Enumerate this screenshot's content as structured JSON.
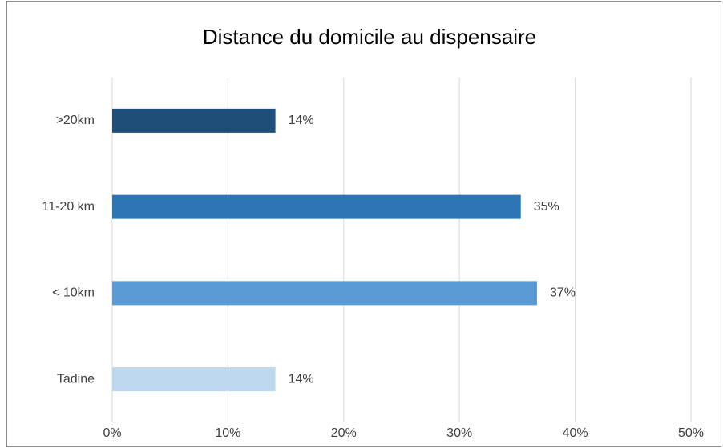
{
  "chart_data": {
    "type": "hbar",
    "title": "Distance du domicile au dispensaire",
    "categories": [
      ">20km",
      "11-20 km",
      "< 10km",
      "Tadine"
    ],
    "values": [
      14.1,
      35.3,
      36.7,
      14.1
    ],
    "value_labels": [
      "14%",
      "35%",
      "37%",
      "14%"
    ],
    "colors": [
      "#1f4e79",
      "#2e75b6",
      "#5b9bd5",
      "#bdd7ee"
    ],
    "xlim": [
      0,
      50
    ],
    "xticks": [
      {
        "value": 0,
        "label": "0%"
      },
      {
        "value": 10,
        "label": "10%"
      },
      {
        "value": 20,
        "label": "20%"
      },
      {
        "value": 30,
        "label": "30%"
      },
      {
        "value": 40,
        "label": "40%"
      },
      {
        "value": 50,
        "label": "50%"
      }
    ],
    "grid": true
  }
}
